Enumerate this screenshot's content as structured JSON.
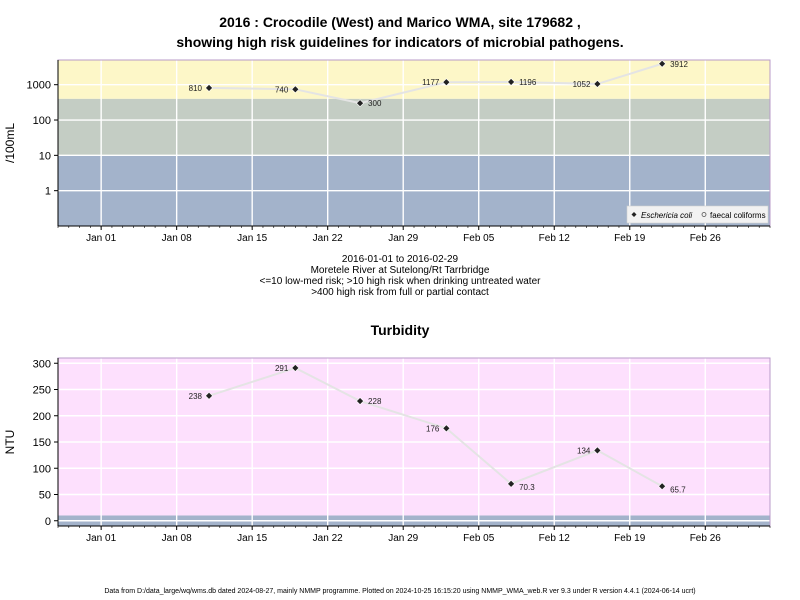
{
  "header": {
    "title_line1": "2016 : Crocodile (West) and Marico WMA, site 179682 ,",
    "title_line2": "showing high risk guidelines for indicators of microbial pathogens."
  },
  "subtitle": {
    "line1": "2016-01-01 to 2016-02-29",
    "line2": "Moretele River at Sutelong/Rt Tarrbridge",
    "line3": "<=10 low-med risk; >10 high risk when drinking untreated water",
    "line4": ">400 high risk from full or partial contact"
  },
  "footer": {
    "text": "Data from D:/data_large/wq/wms.db dated 2024-08-27, mainly NMMP programme. Plotted on 2024-10-25 16:15:20 using NMMP_WMA_web.R ver 9.3 under R version 4.4.1 (2024-06-14 ucrt)"
  },
  "x_axis": {
    "start": "2015-12-28",
    "end": "2016-03-03",
    "ticks": [
      {
        "date": "2016-01-01",
        "label": "Jan 01"
      },
      {
        "date": "2016-01-08",
        "label": "Jan 08"
      },
      {
        "date": "2016-01-15",
        "label": "Jan 15"
      },
      {
        "date": "2016-01-22",
        "label": "Jan 22"
      },
      {
        "date": "2016-01-29",
        "label": "Jan 29"
      },
      {
        "date": "2016-02-05",
        "label": "Feb 05"
      },
      {
        "date": "2016-02-12",
        "label": "Feb 12"
      },
      {
        "date": "2016-02-19",
        "label": "Feb 19"
      },
      {
        "date": "2016-02-26",
        "label": "Feb 26"
      }
    ]
  },
  "chart_data": [
    {
      "type": "line",
      "ylabel": "/100mL",
      "y_scale": "log10",
      "ylim": [
        0.1,
        5000
      ],
      "yticks": [
        1,
        10,
        100,
        1000
      ],
      "grid": true,
      "bands": [
        {
          "from": 0.1,
          "to": 10,
          "color": "#a3b3cb",
          "meaning": "low-med risk"
        },
        {
          "from": 10,
          "to": 400,
          "color": "#c4cdc4",
          "meaning": "high risk drinking untreated water"
        },
        {
          "from": 400,
          "to": 5000,
          "color": "#fdf7c8",
          "meaning": "high risk full or partial contact"
        }
      ],
      "series": [
        {
          "name": "Eschericia coli",
          "marker": "diamond",
          "points": [
            {
              "x": "2016-01-11",
              "y": 810,
              "label": "810"
            },
            {
              "x": "2016-01-19",
              "y": 740,
              "label": "740"
            },
            {
              "x": "2016-01-25",
              "y": 300,
              "label": "300"
            },
            {
              "x": "2016-02-02",
              "y": 1177,
              "label": "1177"
            },
            {
              "x": "2016-02-08",
              "y": 1196,
              "label": "1196"
            },
            {
              "x": "2016-02-16",
              "y": 1052,
              "label": "1052"
            },
            {
              "x": "2016-02-22",
              "y": 3912,
              "label": "3912"
            }
          ]
        },
        {
          "name": "faecal coliforms",
          "marker": "circle",
          "points": []
        }
      ],
      "legend": {
        "position": "bottom-right",
        "items": [
          "Eschericia coli",
          "faecal coliforms"
        ]
      }
    },
    {
      "type": "line",
      "title": "Turbidity",
      "ylabel": "NTU",
      "ylim": [
        -10,
        310
      ],
      "yticks": [
        0,
        50,
        100,
        150,
        200,
        250,
        300
      ],
      "grid": true,
      "bands": [
        {
          "from": -10,
          "to": 10,
          "color": "#a3b3cb"
        },
        {
          "from": 10,
          "to": 310,
          "color": "#fde0fd"
        }
      ],
      "series": [
        {
          "marker": "diamond",
          "points": [
            {
              "x": "2016-01-11",
              "y": 238,
              "label": "238"
            },
            {
              "x": "2016-01-19",
              "y": 291,
              "label": "291"
            },
            {
              "x": "2016-01-25",
              "y": 228,
              "label": "228"
            },
            {
              "x": "2016-02-02",
              "y": 176,
              "label": "176"
            },
            {
              "x": "2016-02-08",
              "y": 70.3,
              "label": "70.3"
            },
            {
              "x": "2016-02-16",
              "y": 134,
              "label": "134"
            },
            {
              "x": "2016-02-22",
              "y": 65.7,
              "label": "65.7"
            }
          ]
        }
      ]
    }
  ]
}
